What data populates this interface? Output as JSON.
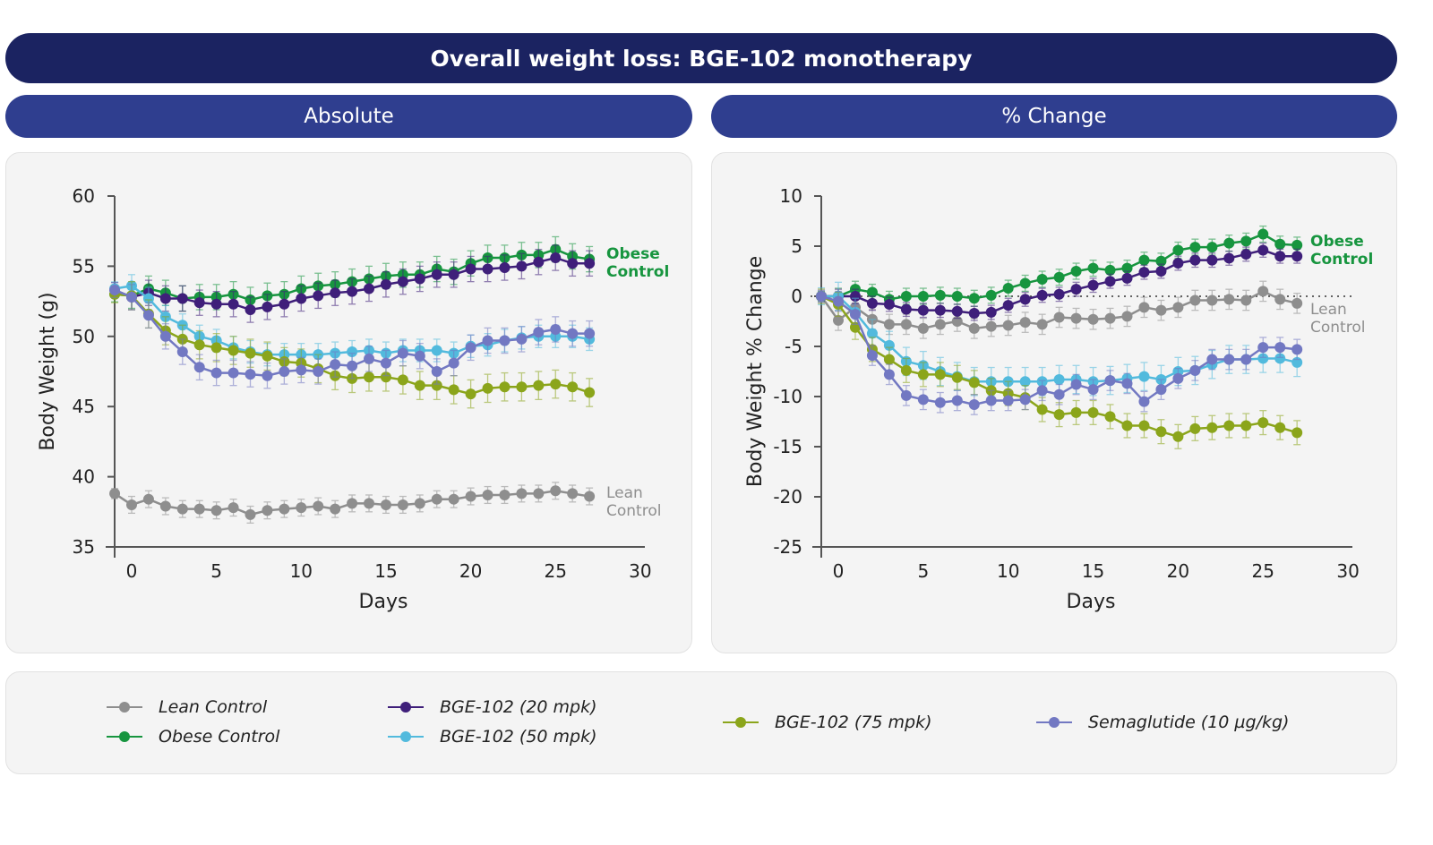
{
  "title": "Overall weight loss: BGE-102 monotherapy",
  "subtitles": {
    "left": "Absolute",
    "right": "% Change"
  },
  "colors": {
    "header": "#1b2361",
    "subheader": "#2f3e8f",
    "Lean Control": "#8e8e8e",
    "Obese Control": "#17953f",
    "BGE-102 (20 mpk)": "#3f1f7a",
    "BGE-102 (50 mpk)": "#52badd",
    "BGE-102 (75 mpk)": "#8ba51b",
    "Semaglutide (10 µg/kg)": "#7278c2"
  },
  "legend": {
    "items": [
      "Lean Control",
      "Obese Control",
      "BGE-102 (20 mpk)",
      "BGE-102 (50 mpk)",
      "BGE-102 (75 mpk)",
      "Semaglutide (10 µg/kg)"
    ]
  },
  "chart_data": [
    {
      "type": "line",
      "ylabel": "Body Weight (g)",
      "xlabel": "Days",
      "xlim": [
        -1,
        30
      ],
      "ylim": [
        35,
        60
      ],
      "xticks": [
        0,
        5,
        10,
        15,
        20,
        25,
        30
      ],
      "yticks": [
        35,
        40,
        45,
        50,
        55,
        60
      ],
      "grid": false,
      "annotations": [
        {
          "series": "Obese Control",
          "text": [
            "Obese",
            "Control"
          ]
        },
        {
          "series": "Lean Control",
          "text": [
            "Lean",
            "Control"
          ]
        }
      ],
      "x": [
        -1,
        0,
        1,
        2,
        3,
        4,
        5,
        6,
        7,
        8,
        9,
        10,
        11,
        12,
        13,
        14,
        15,
        16,
        17,
        18,
        19,
        20,
        21,
        22,
        23,
        24,
        25,
        26,
        27
      ],
      "series": [
        {
          "name": "Lean Control",
          "sem": 0.6,
          "values": [
            38.8,
            38.0,
            38.4,
            37.9,
            37.7,
            37.7,
            37.6,
            37.8,
            37.3,
            37.6,
            37.7,
            37.8,
            37.9,
            37.7,
            38.1,
            38.1,
            38.0,
            38.0,
            38.1,
            38.4,
            38.4,
            38.6,
            38.7,
            38.7,
            38.8,
            38.8,
            39.0,
            38.8,
            38.6
          ]
        },
        {
          "name": "Obese Control",
          "sem": 0.9,
          "values": [
            53.0,
            52.9,
            53.4,
            53.1,
            52.7,
            52.8,
            52.8,
            53.0,
            52.6,
            52.9,
            53.0,
            53.4,
            53.6,
            53.7,
            53.9,
            54.1,
            54.3,
            54.4,
            54.4,
            54.8,
            54.6,
            55.2,
            55.6,
            55.6,
            55.8,
            55.8,
            56.2,
            55.7,
            55.5
          ]
        },
        {
          "name": "BGE-102 (20 mpk)",
          "sem": 0.9,
          "values": [
            53.3,
            52.8,
            53.1,
            52.7,
            52.7,
            52.4,
            52.3,
            52.3,
            51.9,
            52.1,
            52.3,
            52.7,
            52.9,
            53.1,
            53.2,
            53.4,
            53.7,
            53.9,
            54.1,
            54.4,
            54.4,
            54.8,
            54.8,
            54.9,
            55.0,
            55.3,
            55.6,
            55.2,
            55.2
          ]
        },
        {
          "name": "BGE-102 (50 mpk)",
          "sem": 0.8,
          "values": [
            53.4,
            53.6,
            52.7,
            51.4,
            50.8,
            50.0,
            49.7,
            49.2,
            48.9,
            48.7,
            48.7,
            48.7,
            48.7,
            48.8,
            48.9,
            49.0,
            48.8,
            49.0,
            49.0,
            49.0,
            48.8,
            49.3,
            49.4,
            49.7,
            49.9,
            50.0,
            50.0,
            50.0,
            49.8
          ]
        },
        {
          "name": "BGE-102 (75 mpk)",
          "sem": 1.0,
          "values": [
            53.0,
            52.9,
            51.6,
            50.4,
            49.8,
            49.4,
            49.2,
            49.0,
            48.8,
            48.6,
            48.2,
            48.1,
            47.7,
            47.2,
            47.0,
            47.1,
            47.1,
            46.9,
            46.5,
            46.5,
            46.2,
            45.9,
            46.3,
            46.4,
            46.4,
            46.5,
            46.6,
            46.4,
            46.0
          ]
        },
        {
          "name": "Semaglutide (10 µg/kg)",
          "sem": 0.9,
          "values": [
            53.3,
            52.8,
            51.5,
            50.0,
            48.9,
            47.8,
            47.4,
            47.4,
            47.3,
            47.2,
            47.5,
            47.6,
            47.5,
            48.0,
            47.9,
            48.4,
            48.1,
            48.8,
            48.6,
            47.5,
            48.1,
            49.2,
            49.7,
            49.7,
            49.8,
            50.3,
            50.5,
            50.2,
            50.2
          ]
        }
      ]
    },
    {
      "type": "line",
      "ylabel": "Body Weight % Change",
      "xlabel": "Days",
      "xlim": [
        -1,
        30
      ],
      "ylim": [
        -25,
        10
      ],
      "xticks": [
        0,
        5,
        10,
        15,
        20,
        25,
        30
      ],
      "yticks": [
        -25,
        -20,
        -15,
        -10,
        -5,
        0,
        5,
        10
      ],
      "grid": false,
      "reference_line": {
        "y": 0,
        "style": "dotted"
      },
      "annotations": [
        {
          "series": "Obese Control",
          "text": [
            "Obese",
            "Control"
          ]
        },
        {
          "series": "Lean Control",
          "text": [
            "Lean",
            "Control"
          ]
        }
      ],
      "x": [
        -1,
        0,
        1,
        2,
        3,
        4,
        5,
        6,
        7,
        8,
        9,
        10,
        11,
        12,
        13,
        14,
        15,
        16,
        17,
        18,
        19,
        20,
        21,
        22,
        23,
        24,
        25,
        26,
        27
      ],
      "series": [
        {
          "name": "Lean Control",
          "sem": 1.0,
          "values": [
            0,
            -2.4,
            -1.1,
            -2.3,
            -2.8,
            -2.8,
            -3.2,
            -2.8,
            -2.5,
            -3.2,
            -3.0,
            -2.9,
            -2.6,
            -2.8,
            -2.1,
            -2.2,
            -2.3,
            -2.2,
            -2.0,
            -1.1,
            -1.4,
            -1.1,
            -0.4,
            -0.4,
            -0.3,
            -0.4,
            0.5,
            -0.3,
            -0.7
          ]
        },
        {
          "name": "Obese Control",
          "sem": 0.8,
          "values": [
            0,
            0,
            0.7,
            0.4,
            -0.3,
            0,
            0,
            0.1,
            0,
            -0.2,
            0.1,
            0.8,
            1.3,
            1.7,
            1.9,
            2.5,
            2.8,
            2.6,
            2.8,
            3.6,
            3.5,
            4.6,
            4.9,
            4.9,
            5.3,
            5.5,
            6.2,
            5.2,
            5.1
          ]
        },
        {
          "name": "BGE-102 (20 mpk)",
          "sem": 0.7,
          "values": [
            0,
            0,
            0,
            -0.7,
            -0.8,
            -1.3,
            -1.4,
            -1.4,
            -1.5,
            -1.7,
            -1.6,
            -0.9,
            -0.3,
            0.1,
            0.2,
            0.7,
            1.1,
            1.5,
            1.8,
            2.4,
            2.5,
            3.3,
            3.6,
            3.6,
            3.8,
            4.2,
            4.6,
            4.0,
            4.0
          ]
        },
        {
          "name": "BGE-102 (50 mpk)",
          "sem": 1.4,
          "values": [
            0,
            0,
            -1.6,
            -3.7,
            -4.9,
            -6.5,
            -6.9,
            -7.5,
            -8.0,
            -8.5,
            -8.5,
            -8.5,
            -8.5,
            -8.5,
            -8.3,
            -8.3,
            -8.5,
            -8.4,
            -8.2,
            -8.0,
            -8.3,
            -7.5,
            -7.4,
            -6.8,
            -6.3,
            -6.3,
            -6.2,
            -6.2,
            -6.6
          ]
        },
        {
          "name": "BGE-102 (75 mpk)",
          "sem": 1.2,
          "values": [
            0,
            -0.8,
            -3.1,
            -5.3,
            -6.3,
            -7.4,
            -7.8,
            -7.8,
            -8.1,
            -8.6,
            -9.4,
            -9.7,
            -10.1,
            -11.3,
            -11.8,
            -11.6,
            -11.6,
            -12.0,
            -12.9,
            -12.9,
            -13.5,
            -14.0,
            -13.2,
            -13.1,
            -12.9,
            -12.9,
            -12.6,
            -13.1,
            -13.6
          ]
        },
        {
          "name": "Semaglutide (10 µg/kg)",
          "sem": 1.0,
          "values": [
            0,
            -0.5,
            -1.8,
            -5.9,
            -7.8,
            -9.9,
            -10.3,
            -10.6,
            -10.4,
            -10.8,
            -10.4,
            -10.4,
            -10.3,
            -9.4,
            -9.8,
            -8.8,
            -9.3,
            -8.4,
            -8.7,
            -10.5,
            -9.3,
            -8.2,
            -7.4,
            -6.3,
            -6.3,
            -6.3,
            -5.1,
            -5.1,
            -5.3
          ]
        }
      ]
    }
  ]
}
